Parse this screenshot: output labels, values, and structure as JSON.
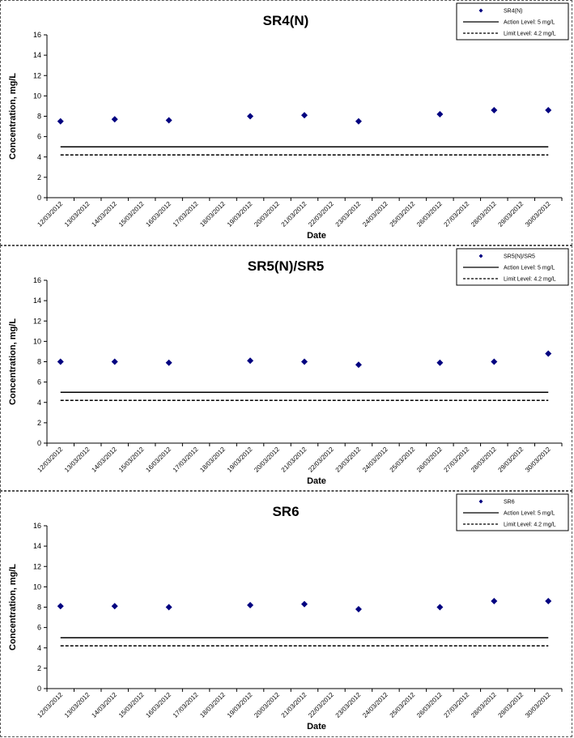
{
  "charts": [
    {
      "chart_data": {
        "type": "scatter",
        "title": "SR4(N)",
        "xlabel": "Date",
        "ylabel": "Concentration, mg/L",
        "ylim": [
          0,
          16
        ],
        "yticks": [
          0,
          2,
          4,
          6,
          8,
          10,
          12,
          14,
          16
        ],
        "categories": [
          "12/03/2012",
          "13/03/2012",
          "14/03/2012",
          "15/03/2012",
          "16/03/2012",
          "17/03/2012",
          "18/03/2012",
          "19/03/2012",
          "20/03/2012",
          "21/03/2012",
          "22/03/2012",
          "23/03/2012",
          "24/03/2012",
          "25/03/2012",
          "26/03/2012",
          "27/03/2012",
          "28/03/2012",
          "29/03/2012",
          "30/03/2012"
        ],
        "series": [
          {
            "name": "SR4(N)",
            "kind": "points",
            "color": "#000080",
            "x": [
              "12/03/2012",
              "14/03/2012",
              "16/03/2012",
              "19/03/2012",
              "21/03/2012",
              "23/03/2012",
              "26/03/2012",
              "28/03/2012",
              "30/03/2012"
            ],
            "y": [
              7.5,
              7.7,
              7.6,
              8.0,
              8.1,
              7.5,
              8.2,
              8.6,
              8.6
            ]
          },
          {
            "name": "Action Level: 5 mg/L",
            "kind": "line",
            "style": "solid",
            "color": "#000000",
            "value": 5
          },
          {
            "name": "Limit Level: 4.2 mg/L",
            "kind": "line",
            "style": "dashed",
            "color": "#000000",
            "value": 4.2
          }
        ],
        "legend": "top-right",
        "grid": false
      }
    },
    {
      "chart_data": {
        "type": "scatter",
        "title": "SR5(N)/SR5",
        "xlabel": "Date",
        "ylabel": "Concentration, mg/L",
        "ylim": [
          0,
          16
        ],
        "yticks": [
          0,
          2,
          4,
          6,
          8,
          10,
          12,
          14,
          16
        ],
        "categories": [
          "12/03/2012",
          "13/03/2012",
          "14/03/2012",
          "15/03/2012",
          "16/03/2012",
          "17/03/2012",
          "18/03/2012",
          "19/03/2012",
          "20/03/2012",
          "21/03/2012",
          "22/03/2012",
          "23/03/2012",
          "24/03/2012",
          "25/03/2012",
          "26/03/2012",
          "27/03/2012",
          "28/03/2012",
          "29/03/2012",
          "30/03/2012"
        ],
        "series": [
          {
            "name": "SR5(N)/SR5",
            "kind": "points",
            "color": "#000080",
            "x": [
              "12/03/2012",
              "14/03/2012",
              "16/03/2012",
              "19/03/2012",
              "21/03/2012",
              "23/03/2012",
              "26/03/2012",
              "28/03/2012",
              "30/03/2012"
            ],
            "y": [
              8.0,
              8.0,
              7.9,
              8.1,
              8.0,
              7.7,
              7.9,
              8.0,
              8.8
            ]
          },
          {
            "name": "Action Level: 5 mg/L",
            "kind": "line",
            "style": "solid",
            "color": "#000000",
            "value": 5
          },
          {
            "name": "Limit Level: 4.2 mg/L",
            "kind": "line",
            "style": "dashed",
            "color": "#000000",
            "value": 4.2
          }
        ],
        "legend": "top-right",
        "grid": false
      }
    },
    {
      "chart_data": {
        "type": "scatter",
        "title": "SR6",
        "xlabel": "Date",
        "ylabel": "Concentration, mg/L",
        "ylim": [
          0,
          16
        ],
        "yticks": [
          0,
          2,
          4,
          6,
          8,
          10,
          12,
          14,
          16
        ],
        "categories": [
          "12/03/2012",
          "13/03/2012",
          "14/03/2012",
          "15/03/2012",
          "16/03/2012",
          "17/03/2012",
          "18/03/2012",
          "19/03/2012",
          "20/03/2012",
          "21/03/2012",
          "22/03/2012",
          "23/03/2012",
          "24/03/2012",
          "25/03/2012",
          "26/03/2012",
          "27/03/2012",
          "28/03/2012",
          "29/03/2012",
          "30/03/2012"
        ],
        "series": [
          {
            "name": "SR6",
            "kind": "points",
            "color": "#000080",
            "x": [
              "12/03/2012",
              "14/03/2012",
              "16/03/2012",
              "19/03/2012",
              "21/03/2012",
              "23/03/2012",
              "26/03/2012",
              "28/03/2012",
              "30/03/2012"
            ],
            "y": [
              8.1,
              8.1,
              8.0,
              8.2,
              8.3,
              7.8,
              8.0,
              8.6,
              8.6
            ]
          },
          {
            "name": "Action Level: 5 mg/L",
            "kind": "line",
            "style": "solid",
            "color": "#000000",
            "value": 5
          },
          {
            "name": "Limit Level: 4.2 mg/L",
            "kind": "line",
            "style": "dashed",
            "color": "#000000",
            "value": 4.2
          }
        ],
        "legend": "top-right",
        "grid": false
      }
    }
  ]
}
